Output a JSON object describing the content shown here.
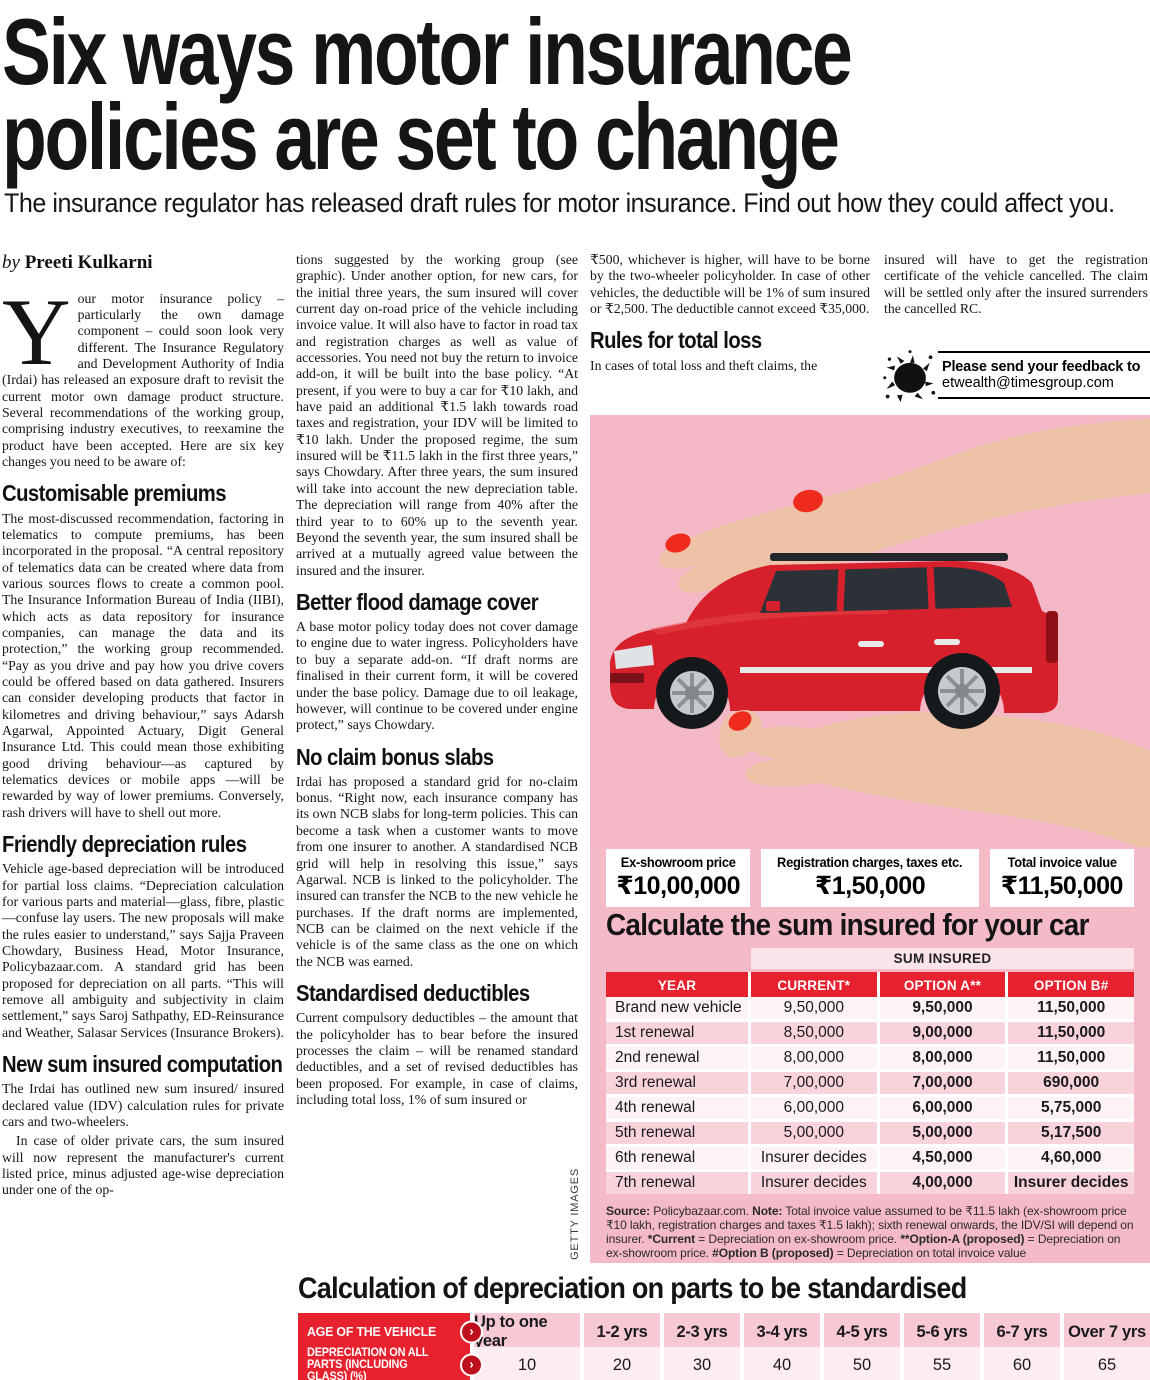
{
  "page": {
    "headline_line1": "Six ways motor insurance",
    "headline_line2": "policies are set to change",
    "standfirst": "The insurance regulator has released draft rules for motor insurance. Find out how they could affect you.",
    "byline": {
      "prefix": "by",
      "name": "Preeti Kulkarni"
    }
  },
  "article": {
    "columns": [
      {
        "blocks": [
          {
            "drop": "Y",
            "t": "our motor insurance policy – particularly the own damage component – could soon look very different. The Insurance Regulatory and Development Authority of India (Irdai) has released an exposure draft to revisit the current motor own damage product structure. Several recommendations of the working group, comprising industry executives, to reexamine the product have been accepted. Here are six key changes you need to be aware of:"
          },
          {
            "h": "Customisable premiums"
          },
          {
            "t": "The most-discussed recommendation, factoring in telematics to compute premiums, has been incorporated in the proposal. “A central repository of telematics data can be created where data from various sources flows to create a common pool. The Insurance Information Bureau of India (IIBI), which acts as data repository for insurance companies, can manage the data and its protection,” the working group recommended. “Pay as you drive and pay how you drive covers could be offered based on data gathered. Insurers can consider developing products that factor in kilometres and driving behaviour,” says Adarsh Agarwal, Appointed Actuary, Digit General Insurance Ltd. This could mean those exhibiting good driving behaviour—as captured by telematics devices or mobile apps —will be rewarded by way of lower premiums. Conversely, rash drivers will have to shell out more."
          },
          {
            "h": "Friendly depreciation rules"
          },
          {
            "t": "Vehicle age-based depreciation will be introduced for partial loss claims. “Depreciation calculation for various parts and material—glass, fibre, plastic—confuse lay users. The new proposals will make the rules easier to understand,” says Sajja Praveen Chowdary, Business Head, Motor Insurance, Policybazaar.com. A standard grid has been proposed for depreciation on all parts.  “This will remove all ambiguity and subjectivity in claim settlement,” says Saroj Sathpathy, ED-Reinsurance and Weather, Salasar Services (Insurance Brokers)."
          },
          {
            "h": "New sum insured computation"
          },
          {
            "t": "The Irdai has outlined new sum insured/ insured declared value (IDV) calculation rules for private cars and two-wheelers."
          },
          {
            "indent": true,
            "t": "In case of older private cars, the sum insured will now represent the manufacturer's current listed price, minus adjusted age-wise depreciation under one of the op-"
          }
        ]
      },
      {
        "blocks": [
          {
            "t": "tions suggested by the working group (see graphic). Under another option, for new cars, for the initial three years, the sum insured will cover current day on-road price of the vehicle including invoice value. It will also have to factor in road tax and registration charges as well as value of accessories.  You need not buy the return to invoice add-on, it will be built into the base policy. “At present, if you were to buy a car for ₹10 lakh, and have paid an additional ₹1.5 lakh towards road taxes and registration, your IDV will be limited to ₹10 lakh. Under the proposed regime, the sum insured will be ₹11.5 lakh in the first three years,” says Chowdary. After three years, the sum insured will take into account the new depreciation table. The depreciation will range from 40% after the third year to to 60% up to the seventh year. Beyond the seventh year, the sum insured shall be arrived at a mutually agreed value between the insured and the insurer."
          },
          {
            "h": "Better flood damage cover"
          },
          {
            "t": "A base motor policy today does not cover damage to engine due to water ingress. Policyholders have to buy a separate add-on.  “If draft norms are finalised in their current form, it will be covered under the base policy. Damage due to oil leakage, however, will continue to be covered under engine protect,” says Chowdary."
          },
          {
            "h": "No claim bonus slabs"
          },
          {
            "t": "Irdai has proposed a standard grid for no-claim bonus. “Right now, each insurance company has its own NCB slabs for long-term policies. This can become a task when a customer wants to move from one insurer to another. A standardised NCB grid will help in resolving this issue,” says Agarwal. NCB is linked to the policyholder. The insured can transfer the NCB to the new vehicle he purchases. If the draft norms are implemented, NCB can be claimed on the next vehicle if the vehicle is of the same class as the one on which the NCB was earned."
          },
          {
            "h": "Standardised deductibles"
          },
          {
            "t": "Current compulsory deductibles – the amount that the policyholder has to bear before the insured processes the claim – will be renamed standard deductibles, and a set of revised deductibles has been proposed.  For example, in case of claims, including total loss, 1% of sum insured or"
          }
        ]
      },
      {
        "blocks": [
          {
            "t": "₹500, whichever is higher, will have to be borne by the two-wheeler  policyholder. In case of other vehicles, the deductible will be 1% of sum insured or ₹2,500. The deductible cannot exceed ₹35,000."
          },
          {
            "h": "Rules for total loss"
          },
          {
            "t": "In cases of total loss and theft claims, the"
          }
        ]
      },
      {
        "blocks": [
          {
            "t": "insured will have to get the registration certificate of the vehicle cancelled. The claim will be settled only after the insured surrenders the cancelled RC."
          }
        ]
      }
    ]
  },
  "feedback": {
    "icon": "ink-splat-icon",
    "line1": "Please send your feedback to",
    "line2": "etwealth@timesgroup.com"
  },
  "graphic": {
    "credit": "GETTY IMAGES",
    "price_boxes": [
      {
        "label": "Ex-showroom price",
        "value": "₹10,00,000"
      },
      {
        "label": "Registration charges, taxes etc.",
        "value": "₹1,50,000"
      },
      {
        "label": "Total invoice value",
        "value": "₹11,50,000"
      }
    ],
    "calc_title": "Calculate the sum insured for your car",
    "table": {
      "group_header": "SUM INSURED",
      "columns": [
        "YEAR",
        "CURRENT*",
        "OPTION A**",
        "OPTION B#"
      ],
      "rows": [
        {
          "year": "Brand new vehicle",
          "current": "9,50,000",
          "option_a": "9,50,000",
          "option_b": "11,50,000"
        },
        {
          "year": "1st renewal",
          "current": "8,50,000",
          "option_a": "9,00,000",
          "option_b": "11,50,000"
        },
        {
          "year": "2nd renewal",
          "current": "8,00,000",
          "option_a": "8,00,000",
          "option_b": "11,50,000"
        },
        {
          "year": "3rd renewal",
          "current": "7,00,000",
          "option_a": "7,00,000",
          "option_b": "690,000"
        },
        {
          "year": "4th renewal",
          "current": "6,00,000",
          "option_a": "6,00,000",
          "option_b": "5,75,000"
        },
        {
          "year": "5th renewal",
          "current": "5,00,000",
          "option_a": "5,00,000",
          "option_b": "5,17,500"
        },
        {
          "year": "6th renewal",
          "current": "Insurer decides",
          "option_a": "4,50,000",
          "option_b": "4,60,000"
        },
        {
          "year": "7th renewal",
          "current": "Insurer decides",
          "option_a": "4,00,000",
          "option_b": "Insurer decides"
        }
      ]
    },
    "source_note": [
      {
        "b": true,
        "t": "Source:"
      },
      {
        "t": " Policybazaar.com. "
      },
      {
        "b": true,
        "t": "Note:"
      },
      {
        "t": " Total invoice value assumed to be ₹11.5 lakh (ex-showroom price ₹10 lakh, registration charges and taxes ₹1.5 lakh); sixth renewal onwards, the IDV/SI will depend on insurer. "
      },
      {
        "b": true,
        "t": "*Current"
      },
      {
        "t": " = Depreciation on ex-showroom price. "
      },
      {
        "b": true,
        "t": "**Option-A (proposed)"
      },
      {
        "t": " = Depreciation on ex-showroom price. "
      },
      {
        "b": true,
        "t": "#Option B (proposed)"
      },
      {
        "t": " = Depreciation on total invoice value"
      }
    ]
  },
  "depreciation_table": {
    "title": "Calculation of depreciation on parts to be standardised",
    "rows": [
      {
        "label": "AGE OF THE VEHICLE",
        "cells": [
          "Up to one year",
          "1-2 yrs",
          "2-3 yrs",
          "3-4 yrs",
          "4-5 yrs",
          "5-6 yrs",
          "6-7 yrs",
          "Over 7 yrs"
        ]
      },
      {
        "label": "DEPRECIATION ON ALL PARTS (INCLUDING GLASS) (%)",
        "cells": [
          "10",
          "20",
          "30",
          "40",
          "50",
          "55",
          "60",
          "65"
        ]
      }
    ]
  },
  "icons": {
    "chevron_glyph": "›"
  },
  "colors": {
    "accent_red": "#e8212e",
    "chevron_red": "#bf0f1d",
    "panel_pink": "#f5bac8",
    "row_light_pink": "#fdf2f4",
    "row_dark_pink": "#f9d3dc",
    "group_header_pink": "#fbe4e9",
    "dep_row1_pink": "#f7c9d4",
    "dep_row2_pink": "#fdedf1",
    "car_red": "#d6202b",
    "ink": "#151515"
  }
}
